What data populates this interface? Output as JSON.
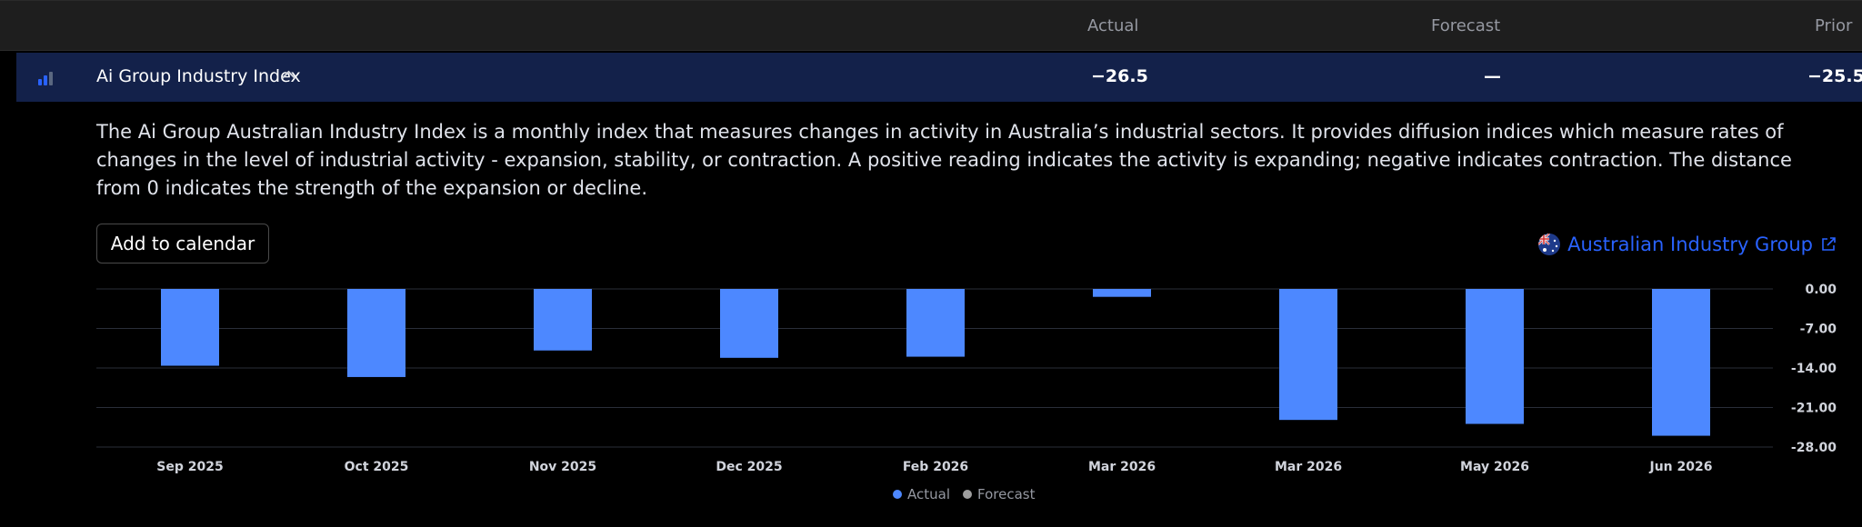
{
  "columns": {
    "actual": "Actual",
    "forecast": "Forecast",
    "prior": "Prior"
  },
  "event": {
    "name": "Ai Group Industry Index",
    "actual": "−26.5",
    "forecast": "—",
    "prior": "−25.5",
    "description": "The Ai Group Australian Industry Index is a monthly index that measures changes in activity in Australia’s industrial sectors. It provides diffusion indices which measure rates of changes in the level of industrial activity - expansion, stability, or contraction. A positive reading indicates the activity is expanding; negative indicates contraction. The distance from 0 indicates the strength of the expansion or decline."
  },
  "add_to_calendar": "Add to calendar",
  "source": {
    "label": "Australian Industry Group",
    "icon": "external-link-icon"
  },
  "colors": {
    "actual": "#4d88ff",
    "forecast": "#9e9e9e",
    "accent": "#2962ff",
    "row_bg": "#13214a"
  },
  "legend": {
    "actual": "Actual",
    "forecast": "Forecast"
  },
  "chart_data": {
    "type": "bar",
    "categories": [
      "Sep 2025",
      "Oct 2025",
      "Nov 2025",
      "Dec 2025",
      "Feb 2026",
      "Mar 2026",
      "Mar 2026",
      "May 2026",
      "Jun 2026"
    ],
    "series": [
      {
        "name": "Actual",
        "values": [
          -13.6,
          -15.6,
          -10.9,
          -12.2,
          -12.0,
          -1.4,
          -23.2,
          -23.9,
          -26.0
        ]
      }
    ],
    "y_ticks": [
      "0.00",
      "-7.00",
      "-14.00",
      "-21.00",
      "-28.00"
    ],
    "ylim": [
      -28,
      0
    ],
    "grid": true,
    "legend_position": "bottom-center"
  }
}
